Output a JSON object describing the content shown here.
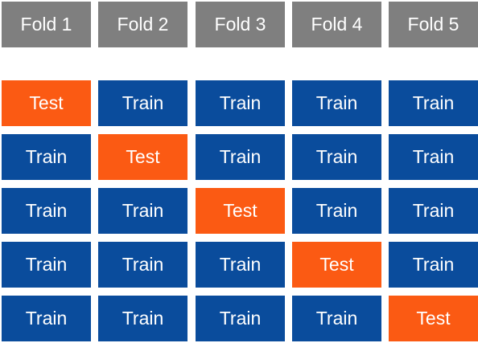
{
  "headers": [
    "Fold 1",
    "Fold 2",
    "Fold 3",
    "Fold 4",
    "Fold 5"
  ],
  "rows": [
    [
      "Test",
      "Train",
      "Train",
      "Train",
      "Train"
    ],
    [
      "Train",
      "Test",
      "Train",
      "Train",
      "Train"
    ],
    [
      "Train",
      "Train",
      "Test",
      "Train",
      "Train"
    ],
    [
      "Train",
      "Train",
      "Train",
      "Test",
      "Train"
    ],
    [
      "Train",
      "Train",
      "Train",
      "Train",
      "Test"
    ]
  ],
  "colors": {
    "header": "#7f7f7f",
    "train": "#0a4c9c",
    "test": "#fb5a13",
    "text": "#ffffff"
  }
}
